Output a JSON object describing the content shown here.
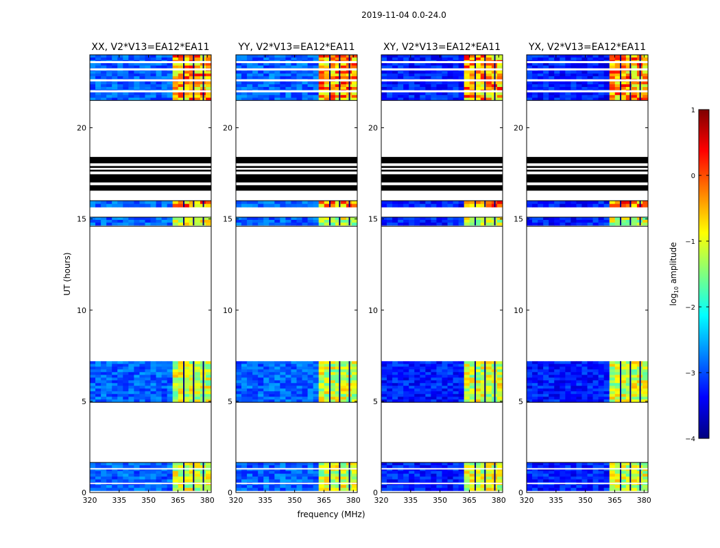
{
  "figure_title": "2019-11-04 0.0-24.0",
  "chart_data": {
    "type": "heatmap",
    "title": "2019-11-04 0.0-24.0",
    "xlabel": "frequency (MHz)",
    "ylabel": "UT (hours)",
    "xlim": [
      320,
      382
    ],
    "ylim": [
      0,
      24
    ],
    "x_ticks": [
      320,
      335,
      350,
      365,
      380
    ],
    "y_ticks": [
      0,
      5,
      10,
      15,
      20
    ],
    "panels": [
      {
        "title": "XX, V2*V13=EA12*EA11"
      },
      {
        "title": "YY, V2*V13=EA12*EA11"
      },
      {
        "title": "XY, V2*V13=EA12*EA11"
      },
      {
        "title": "YX, V2*V13=EA12*EA11"
      }
    ],
    "data_time_ranges_hours": [
      [
        0.1,
        1.65
      ],
      [
        4.95,
        7.2
      ],
      [
        14.65,
        15.1
      ],
      [
        15.65,
        16.0
      ],
      [
        21.5,
        24.0
      ]
    ],
    "flagged_time_ranges_hours": [
      [
        16.5,
        18.4
      ]
    ],
    "bright_band_mhz": [
      363,
      381
    ],
    "colorbar": {
      "label": "log10 amplitude",
      "label_main": "log",
      "label_sub": "10",
      "label_tail": " amplitude",
      "min": -4,
      "max": 1,
      "ticks": [
        "1",
        "0",
        "−1",
        "−2",
        "−3",
        "−4"
      ],
      "colormap": "jet"
    }
  }
}
